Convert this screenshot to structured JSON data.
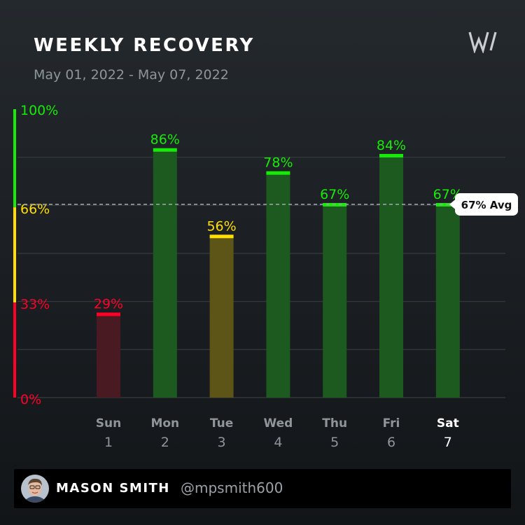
{
  "header": {
    "title": "WEEKLY RECOVERY",
    "date_range": "May 01, 2022 - May 07, 2022",
    "logo_icon": "whoop-logo-icon"
  },
  "footer": {
    "name": "MASON SMITH",
    "handle": "@mpsmith600",
    "avatar_icon": "user-avatar-icon"
  },
  "colors": {
    "green": "#16ec06",
    "yellow": "#ffde00",
    "red": "#ff0026",
    "green_bar": "#1d5a1f",
    "yellow_bar": "#5d5418",
    "red_bar": "#4a1a22"
  },
  "chart_data": {
    "type": "bar",
    "title": "WEEKLY RECOVERY",
    "categories": [
      "Sun",
      "Mon",
      "Tue",
      "Wed",
      "Thu",
      "Fri",
      "Sat"
    ],
    "day_numbers": [
      "1",
      "2",
      "3",
      "4",
      "5",
      "6",
      "7"
    ],
    "highlighted_category": "Sat",
    "values": [
      29,
      86,
      56,
      78,
      67,
      84,
      67
    ],
    "value_labels": [
      "29%",
      "86%",
      "56%",
      "78%",
      "67%",
      "84%",
      "67%"
    ],
    "ylim": [
      0,
      100
    ],
    "yticks": [
      {
        "value": 100,
        "label": "100%"
      },
      {
        "value": 66,
        "label": "66%"
      },
      {
        "value": 33,
        "label": "33%"
      },
      {
        "value": 0,
        "label": "0%"
      }
    ],
    "zones": [
      {
        "from": 67,
        "to": 100,
        "color": "green"
      },
      {
        "from": 34,
        "to": 66,
        "color": "yellow"
      },
      {
        "from": 0,
        "to": 33,
        "color": "red"
      }
    ],
    "average": {
      "value": 67,
      "label": "67% Avg"
    },
    "grid": true
  }
}
